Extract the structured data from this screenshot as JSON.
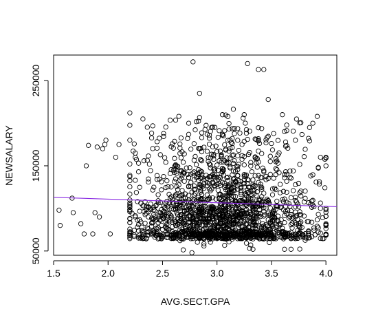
{
  "chart_data": {
    "type": "scatter",
    "xlabel": "AVG.SECT.GPA",
    "ylabel": "NEWSALARY",
    "xlim": [
      1.5,
      4.1
    ],
    "ylim": [
      45000,
      280000
    ],
    "x_ticks": [
      1.5,
      2.0,
      2.5,
      3.0,
      3.5,
      4.0
    ],
    "x_tick_labels": [
      "1.5",
      "2.0",
      "2.5",
      "3.0",
      "3.5",
      "4.0"
    ],
    "y_ticks": [
      50000,
      150000,
      250000
    ],
    "y_tick_labels": [
      "50000",
      "150000",
      "250000"
    ],
    "marker": "open-circle",
    "point_color": "#000000",
    "fit_line": {
      "x": [
        1.5,
        4.1
      ],
      "y": [
        113000,
        102000
      ],
      "color": "#8a2be2"
    },
    "highlighted_points": [
      [
        1.55,
        98000
      ],
      [
        1.56,
        80000
      ],
      [
        1.67,
        112000
      ],
      [
        1.68,
        95000
      ],
      [
        1.75,
        82000
      ],
      [
        1.78,
        70000
      ],
      [
        1.8,
        150000
      ],
      [
        1.82,
        174000
      ],
      [
        1.86,
        70000
      ],
      [
        1.88,
        95000
      ],
      [
        1.9,
        172000
      ],
      [
        1.92,
        90000
      ],
      [
        1.95,
        170000
      ],
      [
        1.97,
        175000
      ],
      [
        1.98,
        180000
      ],
      [
        2.02,
        70000
      ],
      [
        2.07,
        160000
      ],
      [
        2.1,
        175000
      ],
      [
        2.25,
        165000
      ],
      [
        2.32,
        205000
      ],
      [
        2.78,
        272000
      ],
      [
        2.84,
        235000
      ],
      [
        2.95,
        195000
      ],
      [
        3.05,
        210000
      ],
      [
        3.28,
        270000
      ],
      [
        3.38,
        263000
      ],
      [
        3.43,
        263000
      ],
      [
        3.25,
        210000
      ],
      [
        3.6,
        210000
      ],
      [
        3.72,
        180000
      ],
      [
        3.85,
        195000
      ],
      [
        3.92,
        208000
      ],
      [
        3.88,
        200000
      ],
      [
        3.95,
        160000
      ],
      [
        4.0,
        150000
      ],
      [
        4.0,
        160000
      ],
      [
        2.77,
        48000
      ],
      [
        3.3,
        53000
      ],
      [
        3.33,
        52000
      ],
      [
        3.62,
        52000
      ],
      [
        3.68,
        52000
      ],
      [
        3.48,
        60000
      ]
    ],
    "bulk_distribution": {
      "count": 1900,
      "x_range": [
        2.2,
        4.0
      ],
      "x_center": 3.05,
      "y_bands": [
        {
          "center": 70000,
          "spread": 3500,
          "weight": 0.28
        },
        {
          "center": 90000,
          "spread": 12000,
          "weight": 0.4
        },
        {
          "center": 120000,
          "spread": 18000,
          "weight": 0.17
        },
        {
          "center": 160000,
          "spread": 25000,
          "weight": 0.15
        }
      ]
    }
  }
}
